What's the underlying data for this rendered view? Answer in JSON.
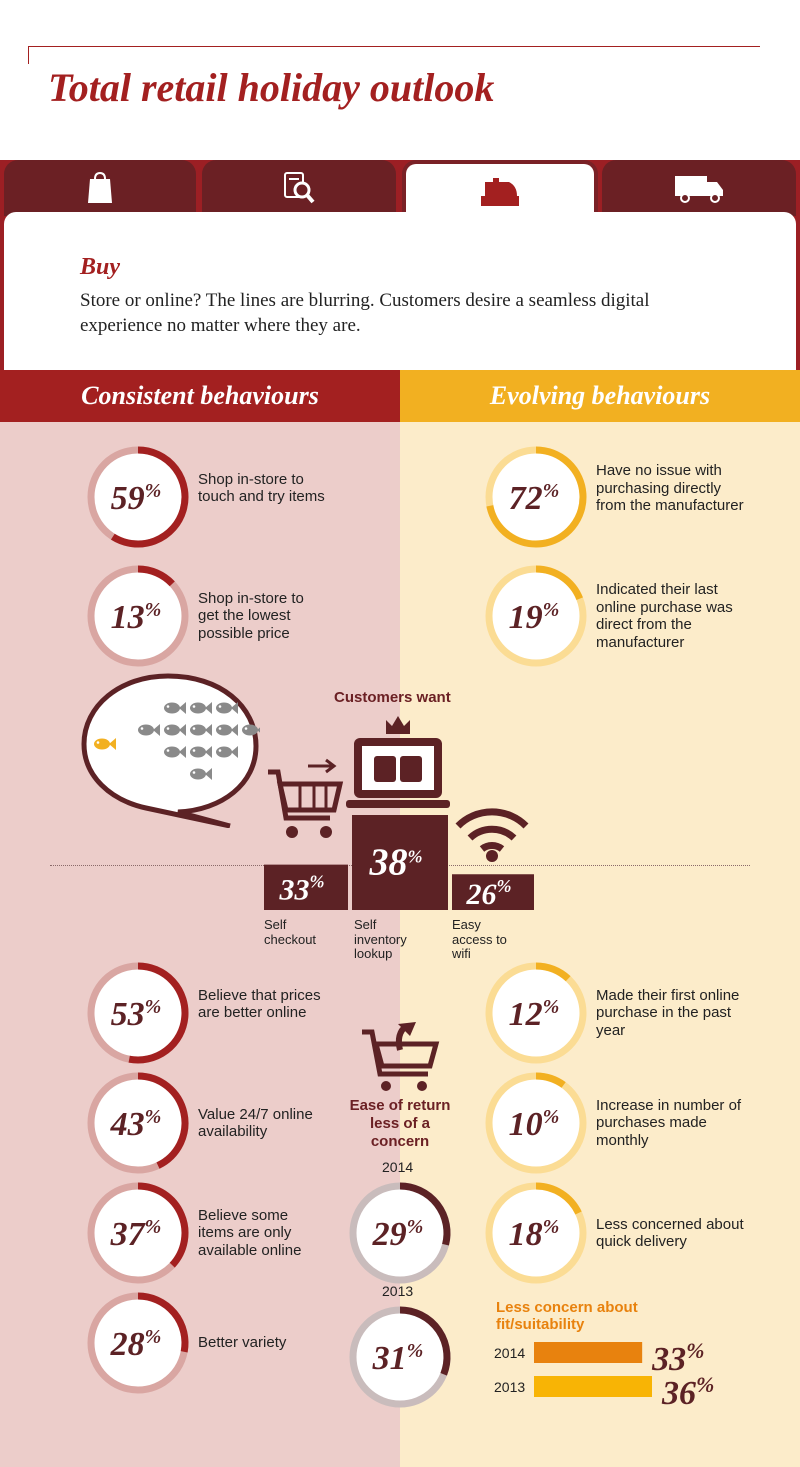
{
  "title": "Total retail holiday outlook",
  "tabs": [
    {
      "icon": "shopping-bag-icon",
      "active": false
    },
    {
      "icon": "search-magnifier-icon",
      "active": false
    },
    {
      "icon": "cash-register-icon",
      "active": true
    },
    {
      "icon": "delivery-truck-icon",
      "active": false
    }
  ],
  "section": {
    "heading": "Buy",
    "description": "Store or online? The lines are blurring. Customers desire a seamless digital experience no matter where they are."
  },
  "columns": {
    "left_heading": "Consistent behaviours",
    "right_heading": "Evolving behaviours"
  },
  "colors": {
    "consistent": "#a32020",
    "evolving": "#f2b021",
    "dark": "#5c2225",
    "bar_2014": "#e8820e",
    "bar_2013": "#f8b405"
  },
  "customers_want": {
    "heading": "Customers want"
  },
  "ease_of_return": {
    "label": "Ease of return less of a concern"
  },
  "fit_concern": {
    "heading": "Less concern about fit/suitability"
  },
  "chart_data": [
    {
      "type": "donut",
      "group": "Consistent behaviours",
      "items": [
        {
          "value": 59,
          "label": "Shop in-store to touch and try items"
        },
        {
          "value": 13,
          "label": "Shop in-store to get the lowest possible price"
        },
        {
          "value": 53,
          "label": "Believe that prices are better online"
        },
        {
          "value": 43,
          "label": "Value 24/7 online availability"
        },
        {
          "value": 37,
          "label": "Believe some items are only available online"
        },
        {
          "value": 28,
          "label": "Better variety"
        }
      ]
    },
    {
      "type": "donut",
      "group": "Evolving behaviours",
      "items": [
        {
          "value": 72,
          "label": "Have no issue with purchasing directly from the manufacturer"
        },
        {
          "value": 19,
          "label": "Indicated their last online purchase was direct from the manufacturer"
        },
        {
          "value": 12,
          "label": "Made their first online purchase in the past year"
        },
        {
          "value": 10,
          "label": "Increase in number of purchases made monthly"
        },
        {
          "value": 18,
          "label": "Less concerned about quick delivery"
        }
      ]
    },
    {
      "type": "bar",
      "title": "Customers want",
      "categories": [
        "Self checkout",
        "Self inventory lookup",
        "Easy access to wifi"
      ],
      "values": [
        33,
        38,
        26
      ]
    },
    {
      "type": "donut",
      "title": "Ease of return less of a concern",
      "items": [
        {
          "year": "2014",
          "value": 29
        },
        {
          "year": "2013",
          "value": 31
        }
      ]
    },
    {
      "type": "bar",
      "orientation": "horizontal",
      "title": "Less concern about fit/suitability",
      "categories": [
        "2014",
        "2013"
      ],
      "values": [
        33,
        36
      ]
    }
  ]
}
